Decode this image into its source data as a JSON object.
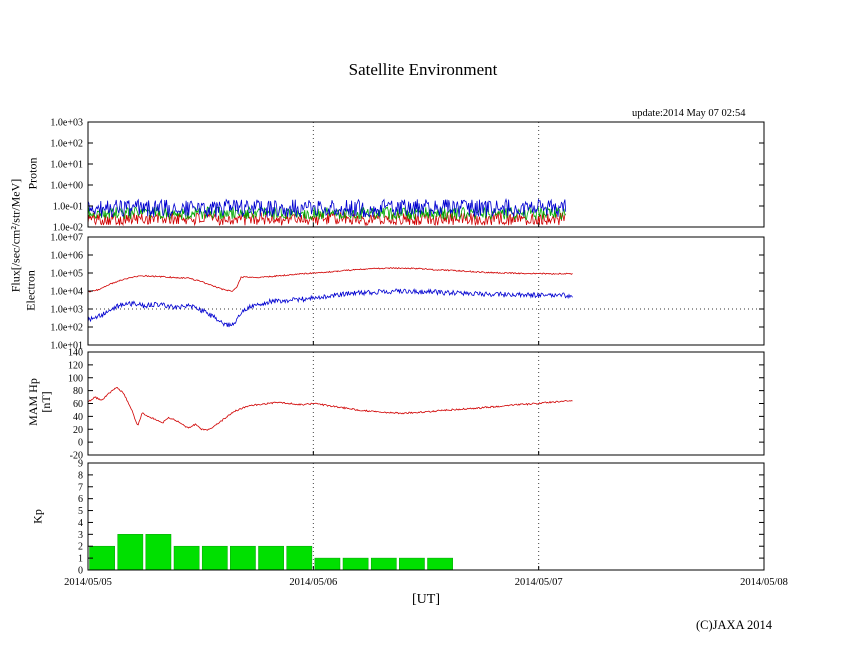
{
  "title": "Satellite Environment",
  "update_label": "update:2014 May 07 02:54",
  "footer": {
    "copyright": "(C)JAXA 2014"
  },
  "flux_axis_label": "Flux[/sec/cm²/str/MeV]",
  "x_axis": {
    "label": "[UT]",
    "tick_labels": [
      "2014/05/05",
      "2014/05/06",
      "2014/05/07",
      "2014/05/08"
    ],
    "range_days": [
      0,
      3
    ]
  },
  "chart_data": [
    {
      "type": "line",
      "panel": "proton",
      "ylabel": "Proton",
      "yscale": "log",
      "ylim": [
        0.01,
        1000
      ],
      "yticks": [
        1000,
        100,
        10,
        1,
        0.1,
        0.01
      ],
      "ytick_labels": [
        "1.0e+03",
        "1.0e+02",
        "1.0e+01",
        "1.0e+00",
        "1.0e-01",
        "1.0e-02"
      ],
      "x_end_days": 2.12,
      "grid": "dotted vertical lines at each day",
      "series": [
        {
          "name": "proton-channel-red",
          "color": "#d00000",
          "noise_dex": 0.32,
          "seed": 101,
          "baseline": [
            [
              0,
              0.025
            ],
            [
              2.12,
              0.025
            ]
          ]
        },
        {
          "name": "proton-channel-green",
          "color": "#00a800",
          "noise_dex": 0.3,
          "seed": 202,
          "baseline": [
            [
              0,
              0.045
            ],
            [
              2.12,
              0.045
            ]
          ]
        },
        {
          "name": "proton-channel-blue",
          "color": "#0000d0",
          "noise_dex": 0.42,
          "seed": 303,
          "baseline": [
            [
              0,
              0.075
            ],
            [
              2.12,
              0.08
            ]
          ]
        }
      ]
    },
    {
      "type": "line",
      "panel": "electron",
      "ylabel": "Electron",
      "yscale": "log",
      "ylim": [
        10,
        10000000
      ],
      "yticks": [
        10000000,
        1000000,
        100000,
        10000,
        1000,
        100,
        10
      ],
      "ytick_labels": [
        "1.0e+07",
        "1.0e+06",
        "1.0e+05",
        "1.0e+04",
        "1.0e+03",
        "1.0e+02",
        "1.0e+01"
      ],
      "threshold_values": [
        1000
      ],
      "x_end_days": 2.15,
      "series": [
        {
          "name": "electron-upper-red",
          "color": "#d00000",
          "noise_dex": 0.035,
          "seed": 404,
          "baseline": [
            [
              0,
              9000
            ],
            [
              0.05,
              12000
            ],
            [
              0.1,
              25000
            ],
            [
              0.15,
              40000
            ],
            [
              0.2,
              60000
            ],
            [
              0.25,
              70000
            ],
            [
              0.3,
              65000
            ],
            [
              0.35,
              60000
            ],
            [
              0.4,
              55000
            ],
            [
              0.45,
              50000
            ],
            [
              0.5,
              35000
            ],
            [
              0.55,
              20000
            ],
            [
              0.6,
              12000
            ],
            [
              0.64,
              10000
            ],
            [
              0.66,
              15000
            ],
            [
              0.68,
              60000
            ],
            [
              0.75,
              55000
            ],
            [
              0.85,
              70000
            ],
            [
              0.95,
              90000
            ],
            [
              1.05,
              110000
            ],
            [
              1.15,
              140000
            ],
            [
              1.25,
              170000
            ],
            [
              1.35,
              190000
            ],
            [
              1.45,
              180000
            ],
            [
              1.55,
              150000
            ],
            [
              1.65,
              130000
            ],
            [
              1.75,
              110000
            ],
            [
              1.85,
              100000
            ],
            [
              1.95,
              95000
            ],
            [
              2.05,
              90000
            ],
            [
              2.15,
              90000
            ]
          ]
        },
        {
          "name": "electron-lower-blue",
          "color": "#0000d0",
          "noise_dex": 0.14,
          "seed": 505,
          "baseline": [
            [
              0,
              250
            ],
            [
              0.05,
              400
            ],
            [
              0.1,
              900
            ],
            [
              0.15,
              1800
            ],
            [
              0.2,
              2000
            ],
            [
              0.25,
              1500
            ],
            [
              0.3,
              1800
            ],
            [
              0.35,
              1500
            ],
            [
              0.4,
              1200
            ],
            [
              0.45,
              1500
            ],
            [
              0.5,
              900
            ],
            [
              0.55,
              400
            ],
            [
              0.6,
              150
            ],
            [
              0.64,
              120
            ],
            [
              0.68,
              600
            ],
            [
              0.72,
              1500
            ],
            [
              0.8,
              2500
            ],
            [
              0.9,
              3000
            ],
            [
              1.0,
              4000
            ],
            [
              1.1,
              6000
            ],
            [
              1.2,
              8000
            ],
            [
              1.3,
              9000
            ],
            [
              1.4,
              10000
            ],
            [
              1.5,
              9000
            ],
            [
              1.6,
              8000
            ],
            [
              1.7,
              7000
            ],
            [
              1.8,
              6500
            ],
            [
              1.9,
              6000
            ],
            [
              2.0,
              6000
            ],
            [
              2.15,
              5500
            ]
          ]
        }
      ]
    },
    {
      "type": "line",
      "panel": "mam-hp",
      "ylabel": "MAM Hp",
      "ylabel2": "[nT]",
      "yscale": "linear",
      "ylim": [
        -20,
        140
      ],
      "yticks": [
        140,
        120,
        100,
        80,
        60,
        40,
        20,
        0,
        -20
      ],
      "ytick_labels": [
        "140",
        "120",
        "100",
        "80",
        "60",
        "40",
        "20",
        "0",
        "-20"
      ],
      "x_end_days": 2.15,
      "series": [
        {
          "name": "mam-hp-red",
          "color": "#d00000",
          "noise": 1.3,
          "seed": 606,
          "baseline": [
            [
              0,
              62
            ],
            [
              0.03,
              70
            ],
            [
              0.06,
              65
            ],
            [
              0.1,
              78
            ],
            [
              0.13,
              85
            ],
            [
              0.16,
              75
            ],
            [
              0.2,
              45
            ],
            [
              0.22,
              25
            ],
            [
              0.24,
              45
            ],
            [
              0.27,
              40
            ],
            [
              0.3,
              35
            ],
            [
              0.33,
              30
            ],
            [
              0.36,
              38
            ],
            [
              0.4,
              32
            ],
            [
              0.44,
              22
            ],
            [
              0.48,
              28
            ],
            [
              0.5,
              20
            ],
            [
              0.53,
              18
            ],
            [
              0.56,
              25
            ],
            [
              0.6,
              35
            ],
            [
              0.65,
              48
            ],
            [
              0.7,
              55
            ],
            [
              0.75,
              58
            ],
            [
              0.8,
              60
            ],
            [
              0.85,
              62
            ],
            [
              0.9,
              60
            ],
            [
              0.95,
              58
            ],
            [
              1.0,
              60
            ],
            [
              1.1,
              55
            ],
            [
              1.2,
              50
            ],
            [
              1.3,
              46
            ],
            [
              1.4,
              45
            ],
            [
              1.5,
              47
            ],
            [
              1.6,
              50
            ],
            [
              1.7,
              52
            ],
            [
              1.8,
              55
            ],
            [
              1.9,
              58
            ],
            [
              2.0,
              60
            ],
            [
              2.05,
              62
            ],
            [
              2.1,
              63
            ],
            [
              2.15,
              65
            ]
          ]
        }
      ]
    },
    {
      "type": "bar",
      "panel": "kp",
      "ylabel": "Kp",
      "yscale": "linear",
      "ylim": [
        0,
        9
      ],
      "yticks": [
        9,
        8,
        7,
        6,
        5,
        4,
        3,
        2,
        1,
        0
      ],
      "ytick_labels": [
        "9",
        "8",
        "7",
        "6",
        "5",
        "4",
        "3",
        "2",
        "1",
        "0"
      ],
      "bar_interval_days": 0.125,
      "color": "#00e000",
      "values": [
        2,
        3,
        3,
        2,
        2,
        2,
        2,
        2,
        1,
        1,
        1,
        1,
        1
      ]
    }
  ]
}
